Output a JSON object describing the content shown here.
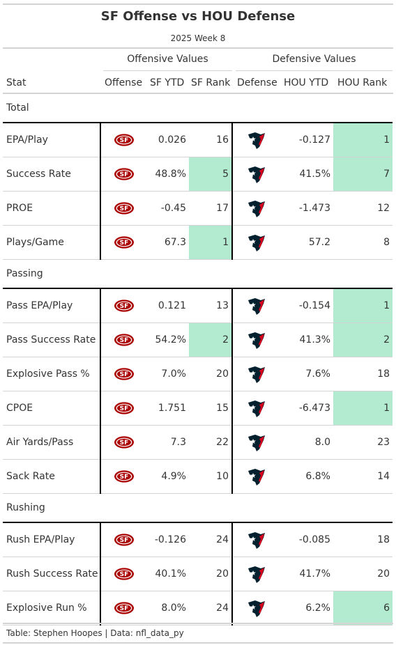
{
  "title": "SF Offense vs HOU Defense",
  "subtitle": "2025 Week 8",
  "spanners": {
    "offense": "Offensive Values",
    "defense": "Defensive Values"
  },
  "columns": [
    "Stat",
    "Offense",
    "SF YTD",
    "SF Rank",
    "Defense",
    "HOU YTD",
    "HOU Rank"
  ],
  "highlight_color": "#b3ebd0",
  "logos": {
    "offense": "sf-49ers-logo-icon",
    "defense": "hou-texans-logo-icon"
  },
  "groups": [
    {
      "name": "Total",
      "rows": [
        {
          "stat": "EPA/Play",
          "sf_ytd": "0.026",
          "sf_rank": "16",
          "sf_hl": false,
          "hou_ytd": "-0.127",
          "hou_rank": "1",
          "hou_hl": true
        },
        {
          "stat": "Success Rate",
          "sf_ytd": "48.8%",
          "sf_rank": "5",
          "sf_hl": true,
          "hou_ytd": "41.5%",
          "hou_rank": "7",
          "hou_hl": true
        },
        {
          "stat": "PROE",
          "sf_ytd": "-0.45",
          "sf_rank": "17",
          "sf_hl": false,
          "hou_ytd": "-1.473",
          "hou_rank": "12",
          "hou_hl": false
        },
        {
          "stat": "Plays/Game",
          "sf_ytd": "67.3",
          "sf_rank": "1",
          "sf_hl": true,
          "hou_ytd": "57.2",
          "hou_rank": "8",
          "hou_hl": false
        }
      ]
    },
    {
      "name": "Passing",
      "rows": [
        {
          "stat": "Pass EPA/Play",
          "sf_ytd": "0.121",
          "sf_rank": "13",
          "sf_hl": false,
          "hou_ytd": "-0.154",
          "hou_rank": "1",
          "hou_hl": true
        },
        {
          "stat": "Pass Success Rate",
          "sf_ytd": "54.2%",
          "sf_rank": "2",
          "sf_hl": true,
          "hou_ytd": "41.3%",
          "hou_rank": "2",
          "hou_hl": true
        },
        {
          "stat": "Explosive Pass %",
          "sf_ytd": "7.0%",
          "sf_rank": "20",
          "sf_hl": false,
          "hou_ytd": "7.6%",
          "hou_rank": "18",
          "hou_hl": false
        },
        {
          "stat": "CPOE",
          "sf_ytd": "1.751",
          "sf_rank": "15",
          "sf_hl": false,
          "hou_ytd": "-6.473",
          "hou_rank": "1",
          "hou_hl": true
        },
        {
          "stat": "Air Yards/Pass",
          "sf_ytd": "7.3",
          "sf_rank": "22",
          "sf_hl": false,
          "hou_ytd": "8.0",
          "hou_rank": "23",
          "hou_hl": false
        },
        {
          "stat": "Sack Rate",
          "sf_ytd": "4.9%",
          "sf_rank": "10",
          "sf_hl": false,
          "hou_ytd": "6.8%",
          "hou_rank": "14",
          "hou_hl": false
        }
      ]
    },
    {
      "name": "Rushing",
      "rows": [
        {
          "stat": "Rush EPA/Play",
          "sf_ytd": "-0.126",
          "sf_rank": "24",
          "sf_hl": false,
          "hou_ytd": "-0.085",
          "hou_rank": "18",
          "hou_hl": false
        },
        {
          "stat": "Rush Success Rate",
          "sf_ytd": "40.1%",
          "sf_rank": "20",
          "sf_hl": false,
          "hou_ytd": "41.7%",
          "hou_rank": "20",
          "hou_hl": false
        },
        {
          "stat": "Explosive Run %",
          "sf_ytd": "8.0%",
          "sf_rank": "24",
          "sf_hl": false,
          "hou_ytd": "6.2%",
          "hou_rank": "6",
          "hou_hl": true
        }
      ]
    }
  ],
  "source_note": "Table: Stephen Hoopes | Data: nfl_data_py"
}
